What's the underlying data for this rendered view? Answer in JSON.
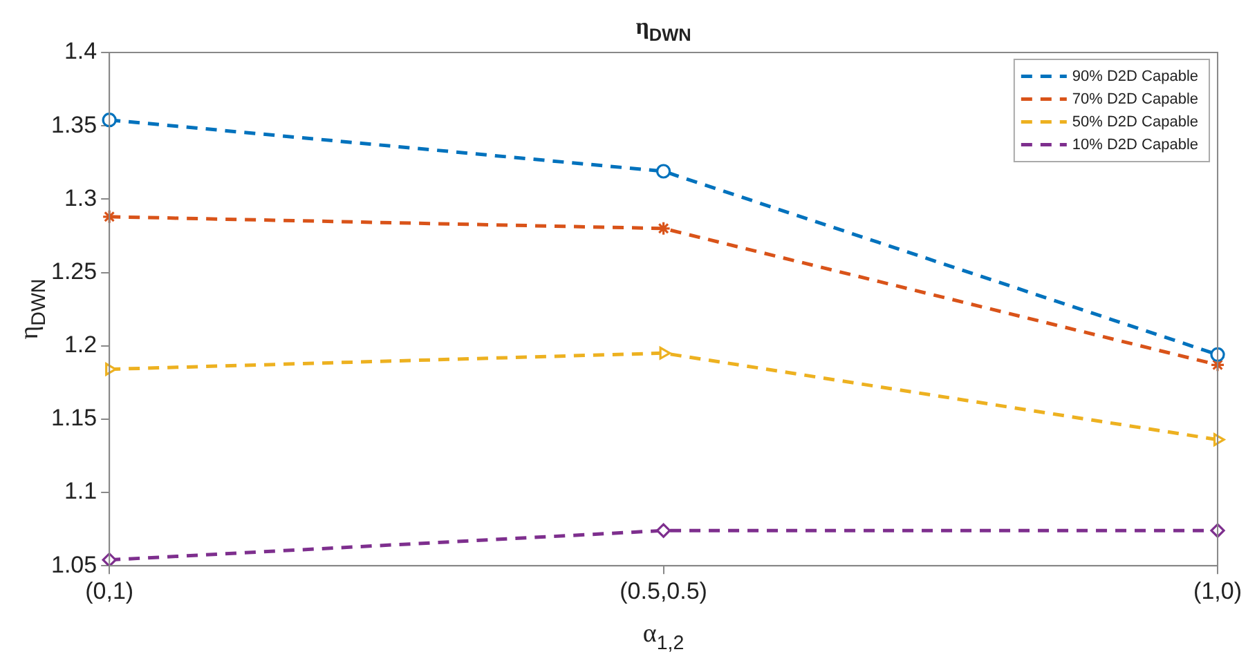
{
  "chart_data": {
    "type": "line",
    "title": "η$_{DWN}$",
    "xlabel": "α$_{1,2}$",
    "ylabel": "η$_{DWN}$",
    "categories": [
      "(0,1)",
      "(0.5,0.5)",
      "(1,0)"
    ],
    "series": [
      {
        "name": "90% D2D Capable",
        "color": "#0072bd",
        "marker": "circle",
        "values": [
          1.354,
          1.319,
          1.194
        ]
      },
      {
        "name": "70% D2D Capable",
        "color": "#d95319",
        "marker": "cross",
        "values": [
          1.288,
          1.28,
          1.187
        ]
      },
      {
        "name": "50% D2D Capable",
        "color": "#edb120",
        "marker": "triangle",
        "values": [
          1.184,
          1.195,
          1.136
        ]
      },
      {
        "name": "10% D2D Capable",
        "color": "#7e2f8e",
        "marker": "diamond",
        "values": [
          1.054,
          1.074,
          1.074
        ]
      }
    ],
    "ylim": [
      1.05,
      1.4
    ],
    "yticks": [
      1.05,
      1.1,
      1.15,
      1.2,
      1.25,
      1.3,
      1.35,
      1.4
    ],
    "grid": false,
    "legend": "top right",
    "line_style": "dashed"
  }
}
